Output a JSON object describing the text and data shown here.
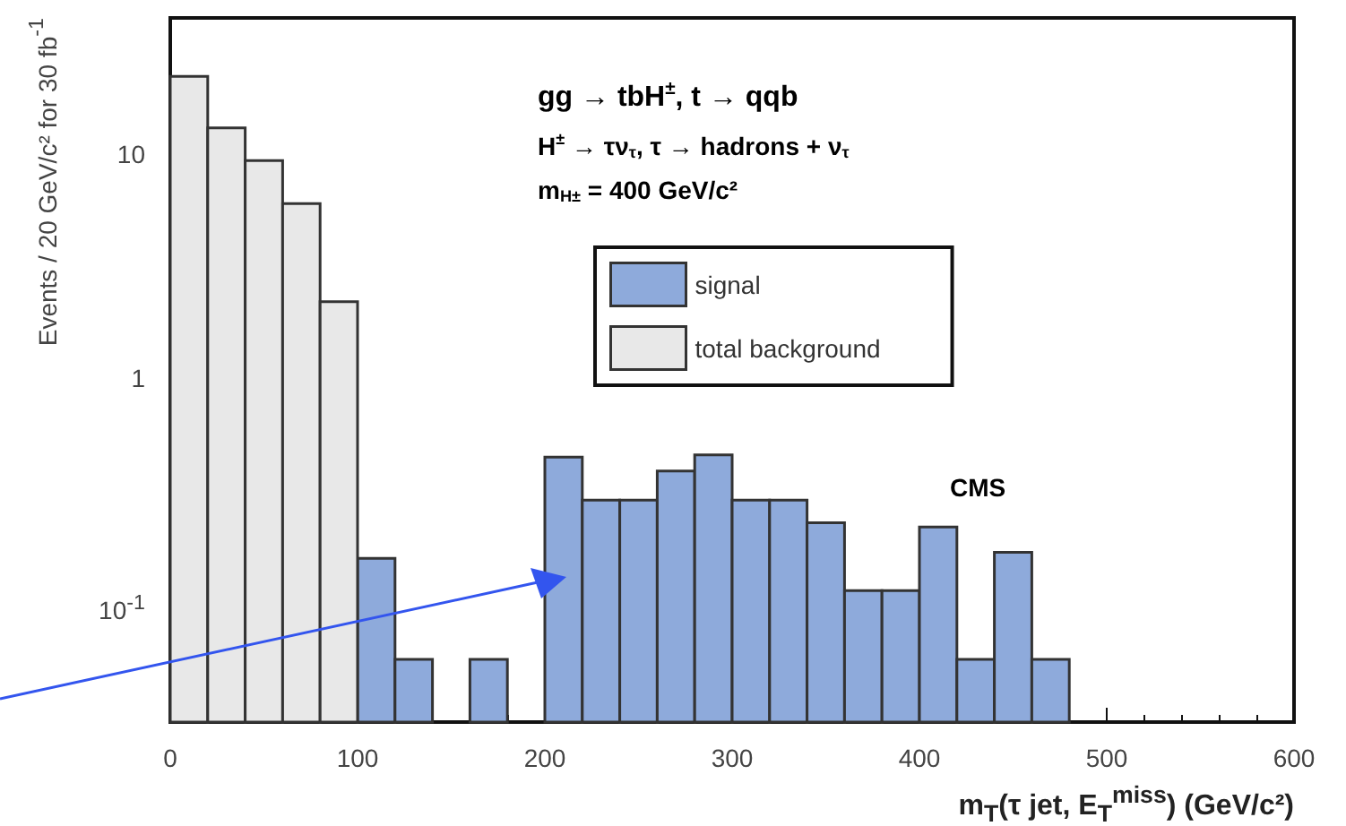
{
  "chart_data": {
    "type": "histogram",
    "xlabel": "m$_{T}$(τ jet, E$_{T}$$^{miss}$) (GeV/c²)",
    "ylabel": "Events / 20 GeV/c² for 30 fb$^{-1}$",
    "annotations": [
      "gg → tbH$^{±}$, t → qqb",
      "H$^{±}$ → τν$_{τ}$, τ → hadrons + ν$_{τ}$",
      "m$_{H±}$ = 400 GeV/c²",
      "CMS"
    ],
    "bins": [
      0,
      20,
      40,
      60,
      80,
      100,
      120,
      140,
      160,
      180,
      200,
      220,
      240,
      260,
      280,
      300,
      320,
      340,
      360,
      380,
      400,
      420,
      440,
      460,
      480
    ],
    "series": [
      {
        "name": "signal",
        "color": "#8eaadb",
        "values": [
          null,
          null,
          null,
          null,
          null,
          0.16,
          0.057,
          null,
          0.057,
          null,
          0.45,
          0.29,
          0.29,
          0.39,
          0.46,
          0.29,
          0.29,
          0.23,
          0.115,
          0.115,
          0.22,
          0.057,
          0.17,
          0.057
        ]
      },
      {
        "name": "total background",
        "color": "#e8e8e8",
        "values": [
          22,
          13,
          9.3,
          6,
          2.2,
          null,
          null,
          null,
          null,
          null,
          null,
          null,
          null,
          null,
          null,
          null,
          null,
          null,
          null,
          null,
          null,
          null,
          null,
          null
        ]
      }
    ],
    "log": "y",
    "xlim": [
      0,
      600
    ],
    "xticks": [
      0,
      100,
      200,
      300,
      400,
      500,
      600
    ],
    "ylim": [
      0.03,
      40
    ],
    "yticks": [
      {
        "value": 0.1,
        "label": "10$^{-1}$"
      },
      1,
      10
    ],
    "legend": "top right"
  }
}
